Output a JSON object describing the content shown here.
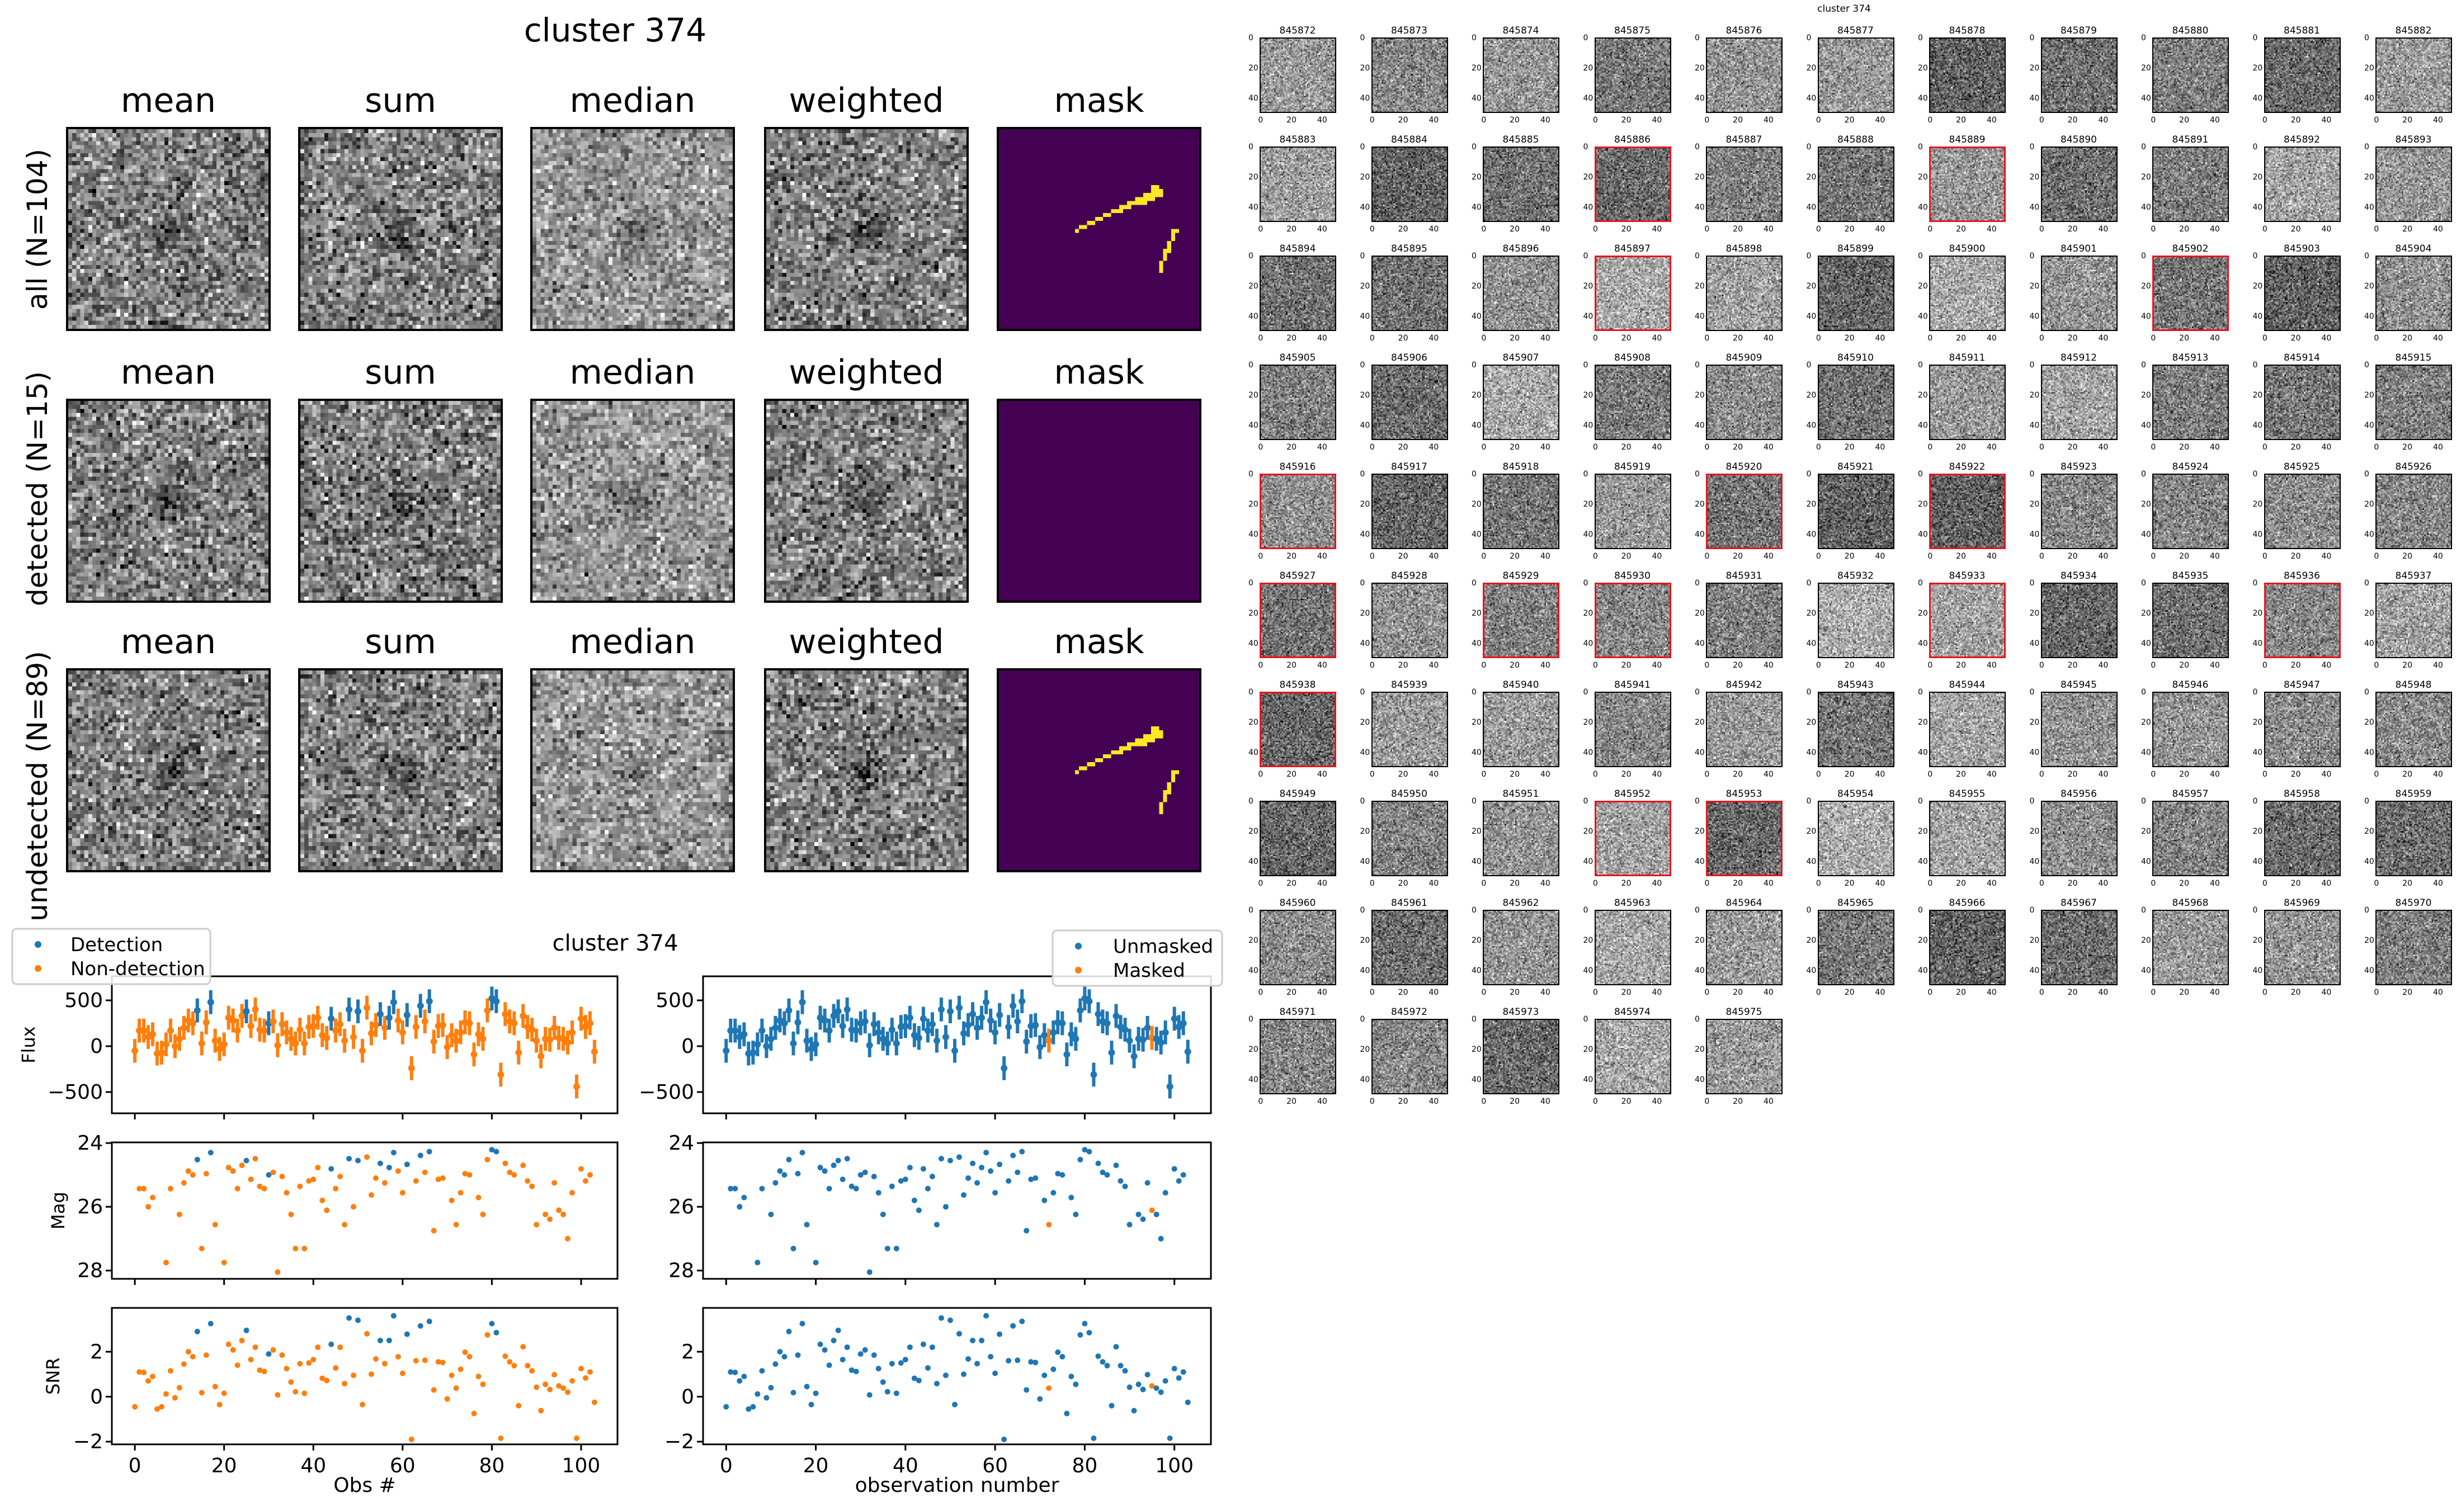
{
  "colors": {
    "detection": "#1f77b4",
    "non_detection": "#ff7f0e",
    "mask_bg": "#440154",
    "mask_fg": "#fde725",
    "highlight": "#e8141e"
  },
  "stack_figure": {
    "title": "cluster 374",
    "column_titles": [
      "mean",
      "sum",
      "median",
      "weighted",
      "mask"
    ],
    "row_labels": [
      "all (N=104)",
      "detected (N=15)",
      "undetected (N=89)"
    ]
  },
  "chart_data": {
    "type": "scatter",
    "title": "cluster 374",
    "xlim": [
      -5.15,
      108.15
    ],
    "xticks": [
      0,
      20,
      40,
      60,
      80,
      100
    ],
    "flux": [
      -50,
      170,
      170,
      100,
      130,
      -80,
      -70,
      20,
      170,
      0,
      80,
      200,
      280,
      250,
      390,
      30,
      260,
      480,
      60,
      -30,
      20,
      310,
      280,
      170,
      330,
      380,
      220,
      400,
      180,
      170,
      250,
      270,
      10,
      240,
      150,
      80,
      30,
      180,
      30,
      210,
      220,
      310,
      120,
      90,
      300,
      170,
      240,
      60,
      400,
      100,
      380,
      -50,
      420,
      140,
      230,
      350,
      200,
      310,
      480,
      280,
      150,
      340,
      -240,
      210,
      440,
      270,
      490,
      50,
      220,
      230,
      -10,
      120,
      60,
      150,
      260,
      250,
      -90,
      130,
      80,
      390,
      520,
      490,
      -310,
      350,
      270,
      250,
      -70,
      330,
      210,
      180,
      60,
      -110,
      80,
      70,
      200,
      90,
      80,
      40,
      150,
      -440,
      300,
      210,
      250,
      -60
    ],
    "flux_err": 130,
    "mag": [
      null,
      25.43,
      25.43,
      26.0,
      25.71,
      null,
      null,
      27.75,
      25.43,
      null,
      26.24,
      25.25,
      24.88,
      25.0,
      24.52,
      27.31,
      24.96,
      24.3,
      26.56,
      null,
      27.75,
      24.77,
      24.88,
      25.43,
      24.7,
      24.55,
      25.14,
      24.49,
      25.36,
      25.43,
      25.0,
      24.92,
      28.05,
      25.05,
      25.56,
      26.24,
      27.31,
      25.36,
      27.31,
      25.19,
      25.14,
      24.77,
      25.8,
      26.11,
      24.81,
      25.43,
      25.05,
      26.56,
      24.49,
      26.0,
      24.55,
      null,
      24.44,
      25.63,
      25.1,
      24.64,
      25.25,
      24.77,
      24.3,
      24.88,
      25.56,
      24.67,
      null,
      25.19,
      24.39,
      24.92,
      24.27,
      26.75,
      25.14,
      25.1,
      null,
      25.8,
      26.56,
      25.56,
      24.96,
      25.0,
      null,
      25.71,
      26.24,
      24.52,
      24.21,
      24.27,
      null,
      24.64,
      24.92,
      25.0,
      null,
      24.7,
      25.19,
      25.36,
      26.56,
      null,
      26.24,
      26.39,
      25.25,
      26.11,
      26.24,
      27.0,
      25.56,
      null,
      24.81,
      25.19,
      25.0,
      null
    ],
    "snr": [
      -0.45,
      1.1,
      1.08,
      0.7,
      0.9,
      -0.55,
      -0.45,
      0.12,
      1.15,
      -0.05,
      0.4,
      1.45,
      2.0,
      1.78,
      2.9,
      0.18,
      1.85,
      3.25,
      0.45,
      -0.35,
      0.15,
      2.33,
      2.08,
      1.4,
      2.5,
      2.95,
      1.65,
      2.2,
      1.18,
      1.12,
      1.9,
      2.08,
      0.08,
      1.85,
      1.25,
      0.65,
      0.22,
      1.47,
      0.15,
      1.5,
      1.65,
      2.2,
      0.82,
      0.72,
      2.33,
      1.28,
      2.2,
      0.58,
      3.5,
      0.95,
      3.4,
      -0.35,
      2.8,
      1.0,
      1.68,
      2.5,
      1.47,
      2.5,
      3.6,
      1.78,
      1.04,
      2.78,
      -1.9,
      1.6,
      3.15,
      1.62,
      3.35,
      0.3,
      1.55,
      1.52,
      -0.1,
      0.95,
      0.38,
      1.22,
      1.98,
      1.78,
      -0.75,
      0.9,
      0.55,
      2.75,
      3.25,
      2.85,
      -1.85,
      1.8,
      1.55,
      1.38,
      -0.4,
      2.22,
      1.38,
      1.15,
      0.42,
      -0.62,
      0.55,
      0.32,
      0.98,
      0.48,
      0.38,
      0.2,
      0.7,
      -1.85,
      1.25,
      0.83,
      1.1,
      -0.25
    ],
    "detected_indices": [
      14,
      17,
      25,
      30,
      44,
      48,
      50,
      55,
      57,
      58,
      61,
      64,
      66,
      80,
      81
    ],
    "masked_indices": [
      72,
      95
    ],
    "panels": [
      {
        "ylabel": "Flux",
        "key": "flux",
        "ylim": [
          -732,
          762
        ],
        "yticks": [
          -500,
          0,
          500
        ],
        "ytick_labels": [
          "−500",
          "0",
          "500"
        ]
      },
      {
        "ylabel": "Mag",
        "key": "mag",
        "ylim": [
          28.26,
          23.98
        ],
        "yticks": [
          24,
          26,
          28
        ],
        "ytick_labels": [
          "24",
          "26",
          "28"
        ]
      },
      {
        "ylabel": "SNR",
        "key": "snr",
        "ylim": [
          -2.12,
          3.95
        ],
        "yticks": [
          -2,
          0,
          2
        ],
        "ytick_labels": [
          "−2",
          "0",
          "2"
        ]
      }
    ],
    "figures": [
      {
        "xlabel": "Obs #",
        "color_by": "detection",
        "legend": [
          "Detection",
          "Non-detection"
        ],
        "legend_loc": "upper-left"
      },
      {
        "xlabel": "observation number",
        "color_by": "mask",
        "legend": [
          "Unmasked",
          "Masked"
        ],
        "legend_loc": "upper-right"
      }
    ]
  },
  "thumbnails": {
    "title": "cluster 374",
    "tick_labels": [
      "0",
      "20",
      "40"
    ],
    "ids": [
      "845872",
      "845873",
      "845874",
      "845875",
      "845876",
      "845877",
      "845878",
      "845879",
      "845880",
      "845881",
      "845882",
      "845883",
      "845884",
      "845885",
      "845886",
      "845887",
      "845888",
      "845889",
      "845890",
      "845891",
      "845892",
      "845893",
      "845894",
      "845895",
      "845896",
      "845897",
      "845898",
      "845899",
      "845900",
      "845901",
      "845902",
      "845903",
      "845904",
      "845905",
      "845906",
      "845907",
      "845908",
      "845909",
      "845910",
      "845911",
      "845912",
      "845913",
      "845914",
      "845915",
      "845916",
      "845917",
      "845918",
      "845919",
      "845920",
      "845921",
      "845922",
      "845923",
      "845924",
      "845925",
      "845926",
      "845927",
      "845928",
      "845929",
      "845930",
      "845931",
      "845932",
      "845933",
      "845934",
      "845935",
      "845936",
      "845937",
      "845938",
      "845939",
      "845940",
      "845941",
      "845942",
      "845943",
      "845944",
      "845945",
      "845946",
      "845947",
      "845948",
      "845949",
      "845950",
      "845951",
      "845952",
      "845953",
      "845954",
      "845955",
      "845956",
      "845957",
      "845958",
      "845959",
      "845960",
      "845961",
      "845962",
      "845963",
      "845964",
      "845965",
      "845966",
      "845967",
      "845968",
      "845969",
      "845970",
      "845971",
      "845972",
      "845973",
      "845974",
      "845975"
    ],
    "highlighted_ids": [
      "845886",
      "845889",
      "845897",
      "845902",
      "845916",
      "845920",
      "845922",
      "845927",
      "845929",
      "845930",
      "845933",
      "845936",
      "845938",
      "845952",
      "845953"
    ]
  }
}
